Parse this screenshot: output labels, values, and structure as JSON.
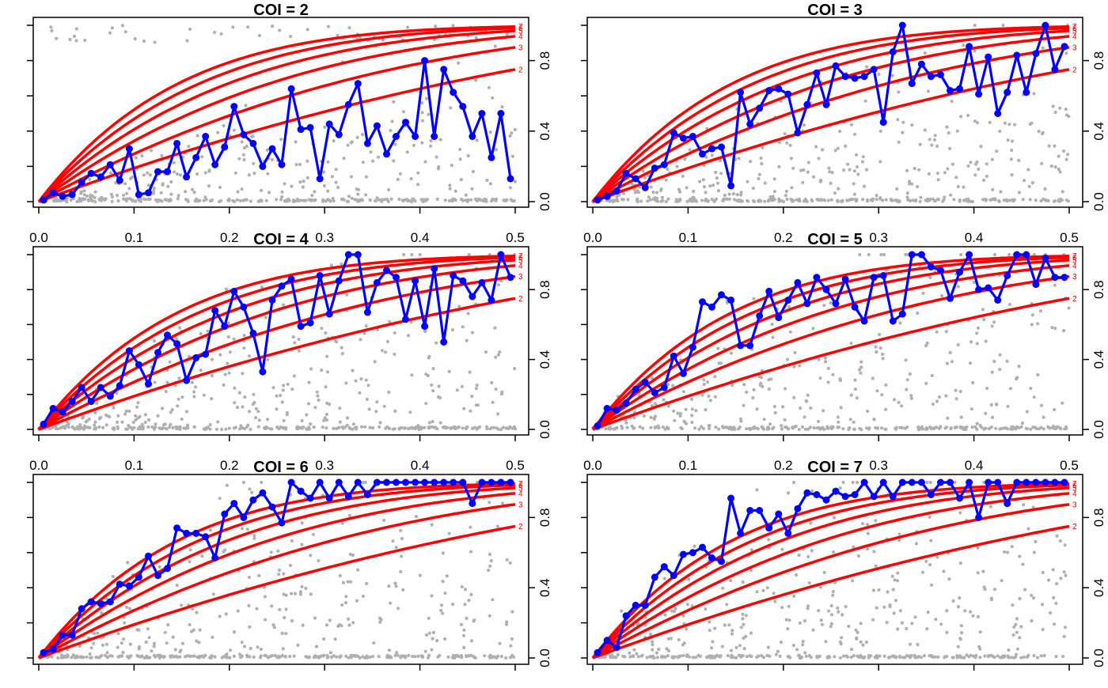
{
  "colors": {
    "curves": "#ff0000",
    "observed": "#0000ff",
    "scatter": "#b0b0b0",
    "axis": "#000000"
  },
  "chart_data": [
    {
      "type": "line",
      "title": "COI = 2",
      "x_ticks": [
        "0.0",
        "0.1",
        "0.2",
        "0.3",
        "0.4",
        "0.5"
      ],
      "y_ticks": [
        "0.0",
        "0.4",
        "0.8"
      ],
      "xlim": [
        0,
        0.5
      ],
      "ylim": [
        0,
        1
      ],
      "curve_labels": [
        "2",
        "3",
        "4",
        "5",
        "6",
        "7"
      ],
      "series": [
        {
          "x": [
            0.005,
            0.015,
            0.025,
            0.035,
            0.045,
            0.055,
            0.065,
            0.075,
            0.085,
            0.095,
            0.105,
            0.115,
            0.125,
            0.135,
            0.145,
            0.155,
            0.165,
            0.175,
            0.185,
            0.195,
            0.205,
            0.215,
            0.225,
            0.235,
            0.245,
            0.255,
            0.265,
            0.275,
            0.285,
            0.295,
            0.305,
            0.315,
            0.325,
            0.335,
            0.345,
            0.355,
            0.365,
            0.375,
            0.385,
            0.395,
            0.405,
            0.415,
            0.425,
            0.435,
            0.445,
            0.455,
            0.465,
            0.475,
            0.485,
            0.495
          ],
          "y": [
            0.01,
            0.05,
            0.03,
            0.04,
            0.11,
            0.16,
            0.14,
            0.21,
            0.12,
            0.3,
            0.04,
            0.05,
            0.17,
            0.17,
            0.33,
            0.14,
            0.25,
            0.37,
            0.21,
            0.31,
            0.54,
            0.38,
            0.33,
            0.2,
            0.3,
            0.21,
            0.64,
            0.41,
            0.42,
            0.13,
            0.44,
            0.38,
            0.55,
            0.67,
            0.33,
            0.43,
            0.27,
            0.37,
            0.45,
            0.37,
            0.8,
            0.37,
            0.75,
            0.62,
            0.54,
            0.37,
            0.5,
            0.25,
            0.5,
            0.13
          ]
        }
      ]
    },
    {
      "type": "line",
      "title": "COI = 3",
      "x_ticks": [
        "0.0",
        "0.1",
        "0.2",
        "0.3",
        "0.4",
        "0.5"
      ],
      "y_ticks": [
        "0.0",
        "0.4",
        "0.8"
      ],
      "xlim": [
        0,
        0.5
      ],
      "ylim": [
        0,
        1
      ],
      "curve_labels": [
        "2",
        "3",
        "4",
        "5",
        "6",
        "7"
      ],
      "series": [
        {
          "x": [
            0.005,
            0.015,
            0.025,
            0.035,
            0.045,
            0.055,
            0.065,
            0.075,
            0.085,
            0.095,
            0.105,
            0.115,
            0.125,
            0.135,
            0.145,
            0.155,
            0.165,
            0.175,
            0.185,
            0.195,
            0.205,
            0.215,
            0.225,
            0.235,
            0.245,
            0.255,
            0.265,
            0.275,
            0.285,
            0.295,
            0.305,
            0.315,
            0.325,
            0.335,
            0.345,
            0.355,
            0.365,
            0.375,
            0.385,
            0.395,
            0.405,
            0.415,
            0.425,
            0.435,
            0.445,
            0.455,
            0.465,
            0.475,
            0.485,
            0.495
          ],
          "y": [
            0.01,
            0.03,
            0.06,
            0.16,
            0.13,
            0.08,
            0.19,
            0.21,
            0.39,
            0.36,
            0.37,
            0.27,
            0.3,
            0.31,
            0.09,
            0.62,
            0.44,
            0.53,
            0.63,
            0.64,
            0.61,
            0.39,
            0.55,
            0.73,
            0.55,
            0.77,
            0.71,
            0.7,
            0.71,
            0.75,
            0.45,
            0.85,
            1.0,
            0.67,
            0.78,
            0.71,
            0.72,
            0.63,
            0.64,
            0.88,
            0.61,
            0.82,
            0.5,
            0.62,
            0.83,
            0.62,
            0.84,
            1.0,
            0.75,
            0.88
          ]
        }
      ]
    },
    {
      "type": "line",
      "title": "COI = 4",
      "x_ticks": [
        "0.0",
        "0.1",
        "0.2",
        "0.3",
        "0.4",
        "0.5"
      ],
      "y_ticks": [
        "0.0",
        "0.4",
        "0.8"
      ],
      "xlim": [
        0,
        0.5
      ],
      "ylim": [
        0,
        1
      ],
      "curve_labels": [
        "2",
        "3",
        "4",
        "5",
        "6",
        "7"
      ],
      "series": [
        {
          "x": [
            0.005,
            0.015,
            0.025,
            0.035,
            0.045,
            0.055,
            0.065,
            0.075,
            0.085,
            0.095,
            0.105,
            0.115,
            0.125,
            0.135,
            0.145,
            0.155,
            0.165,
            0.175,
            0.185,
            0.195,
            0.205,
            0.215,
            0.225,
            0.235,
            0.245,
            0.255,
            0.265,
            0.275,
            0.285,
            0.295,
            0.305,
            0.315,
            0.325,
            0.335,
            0.345,
            0.355,
            0.365,
            0.375,
            0.385,
            0.395,
            0.405,
            0.415,
            0.425,
            0.435,
            0.445,
            0.455,
            0.465,
            0.475,
            0.485,
            0.495
          ],
          "y": [
            0.03,
            0.12,
            0.1,
            0.16,
            0.24,
            0.16,
            0.24,
            0.19,
            0.25,
            0.45,
            0.37,
            0.26,
            0.44,
            0.54,
            0.49,
            0.28,
            0.41,
            0.43,
            0.68,
            0.59,
            0.79,
            0.7,
            0.55,
            0.33,
            0.74,
            0.82,
            0.86,
            0.59,
            0.61,
            0.88,
            0.66,
            0.85,
            1.0,
            1.0,
            0.67,
            0.84,
            0.91,
            0.87,
            0.63,
            0.85,
            0.59,
            0.92,
            0.5,
            0.88,
            0.85,
            0.76,
            0.84,
            0.74,
            1.0,
            0.87
          ]
        }
      ]
    },
    {
      "type": "line",
      "title": "COI = 5",
      "x_ticks": [
        "0.0",
        "0.1",
        "0.2",
        "0.3",
        "0.4",
        "0.5"
      ],
      "y_ticks": [
        "0.0",
        "0.4",
        "0.8"
      ],
      "xlim": [
        0,
        0.5
      ],
      "ylim": [
        0,
        1
      ],
      "curve_labels": [
        "2",
        "3",
        "4",
        "5",
        "6",
        "7"
      ],
      "series": [
        {
          "x": [
            0.005,
            0.015,
            0.025,
            0.035,
            0.045,
            0.055,
            0.065,
            0.075,
            0.085,
            0.095,
            0.105,
            0.115,
            0.125,
            0.135,
            0.145,
            0.155,
            0.165,
            0.175,
            0.185,
            0.195,
            0.205,
            0.215,
            0.225,
            0.235,
            0.245,
            0.255,
            0.265,
            0.275,
            0.285,
            0.295,
            0.305,
            0.315,
            0.325,
            0.335,
            0.345,
            0.355,
            0.365,
            0.375,
            0.385,
            0.395,
            0.405,
            0.415,
            0.425,
            0.435,
            0.445,
            0.455,
            0.465,
            0.475,
            0.485,
            0.495
          ],
          "y": [
            0.02,
            0.12,
            0.11,
            0.15,
            0.23,
            0.27,
            0.21,
            0.24,
            0.42,
            0.32,
            0.47,
            0.73,
            0.7,
            0.77,
            0.74,
            0.48,
            0.48,
            0.65,
            0.79,
            0.64,
            0.74,
            0.84,
            0.72,
            0.87,
            0.8,
            0.72,
            0.86,
            0.7,
            0.62,
            0.87,
            0.88,
            0.62,
            0.66,
            1.0,
            1.0,
            0.93,
            0.91,
            0.75,
            0.9,
            1.0,
            0.8,
            0.81,
            0.74,
            0.88,
            1.0,
            1.0,
            0.83,
            0.98,
            0.87,
            0.87
          ]
        }
      ]
    },
    {
      "type": "line",
      "title": "COI = 6",
      "x_ticks": [
        "0.0",
        "0.1",
        "0.2",
        "0.3",
        "0.4",
        "0.5"
      ],
      "y_ticks": [
        "0.0",
        "0.4",
        "0.8"
      ],
      "xlim": [
        0,
        0.5
      ],
      "ylim": [
        0,
        1
      ],
      "curve_labels": [
        "2",
        "3",
        "4",
        "5",
        "6",
        "7"
      ],
      "series": [
        {
          "x": [
            0.005,
            0.015,
            0.025,
            0.035,
            0.045,
            0.055,
            0.065,
            0.075,
            0.085,
            0.095,
            0.105,
            0.115,
            0.125,
            0.135,
            0.145,
            0.155,
            0.165,
            0.175,
            0.185,
            0.195,
            0.205,
            0.215,
            0.225,
            0.235,
            0.245,
            0.255,
            0.265,
            0.275,
            0.285,
            0.295,
            0.305,
            0.315,
            0.325,
            0.335,
            0.345,
            0.355,
            0.365,
            0.375,
            0.385,
            0.395,
            0.405,
            0.415,
            0.425,
            0.435,
            0.445,
            0.455,
            0.465,
            0.475,
            0.485,
            0.495
          ],
          "y": [
            0.03,
            0.05,
            0.13,
            0.13,
            0.28,
            0.32,
            0.31,
            0.32,
            0.42,
            0.41,
            0.46,
            0.58,
            0.47,
            0.51,
            0.74,
            0.71,
            0.71,
            0.69,
            0.57,
            0.82,
            0.88,
            0.8,
            0.9,
            0.94,
            0.86,
            0.77,
            1.0,
            0.95,
            0.91,
            1.0,
            0.91,
            1.0,
            0.92,
            1.0,
            0.93,
            1.0,
            1.0,
            1.0,
            1.0,
            1.0,
            1.0,
            1.0,
            1.0,
            1.0,
            1.0,
            0.88,
            1.0,
            1.0,
            1.0,
            1.0
          ]
        }
      ]
    },
    {
      "type": "line",
      "title": "COI = 7",
      "x_ticks": [
        "0.0",
        "0.1",
        "0.2",
        "0.3",
        "0.4",
        "0.5"
      ],
      "y_ticks": [
        "0.0",
        "0.4",
        "0.8"
      ],
      "xlim": [
        0,
        0.5
      ],
      "ylim": [
        0,
        1
      ],
      "curve_labels": [
        "2",
        "3",
        "4",
        "5",
        "6",
        "7"
      ],
      "series": [
        {
          "x": [
            0.005,
            0.015,
            0.025,
            0.035,
            0.045,
            0.055,
            0.065,
            0.075,
            0.085,
            0.095,
            0.105,
            0.115,
            0.125,
            0.135,
            0.145,
            0.155,
            0.165,
            0.175,
            0.185,
            0.195,
            0.205,
            0.215,
            0.225,
            0.235,
            0.245,
            0.255,
            0.265,
            0.275,
            0.285,
            0.295,
            0.305,
            0.315,
            0.325,
            0.335,
            0.345,
            0.355,
            0.365,
            0.375,
            0.385,
            0.395,
            0.405,
            0.415,
            0.425,
            0.435,
            0.445,
            0.455,
            0.465,
            0.475,
            0.485,
            0.495
          ],
          "y": [
            0.03,
            0.1,
            0.06,
            0.24,
            0.3,
            0.3,
            0.46,
            0.52,
            0.47,
            0.59,
            0.6,
            0.63,
            0.57,
            0.55,
            0.91,
            0.71,
            0.84,
            0.84,
            0.74,
            0.82,
            0.71,
            0.85,
            0.94,
            0.93,
            0.9,
            0.95,
            0.92,
            0.93,
            1.0,
            0.92,
            1.0,
            0.92,
            1.0,
            1.0,
            1.0,
            0.93,
            1.0,
            1.0,
            0.91,
            1.0,
            0.8,
            1.0,
            1.0,
            0.88,
            1.0,
            1.0,
            1.0,
            1.0,
            1.0,
            1.0
          ]
        }
      ]
    }
  ]
}
